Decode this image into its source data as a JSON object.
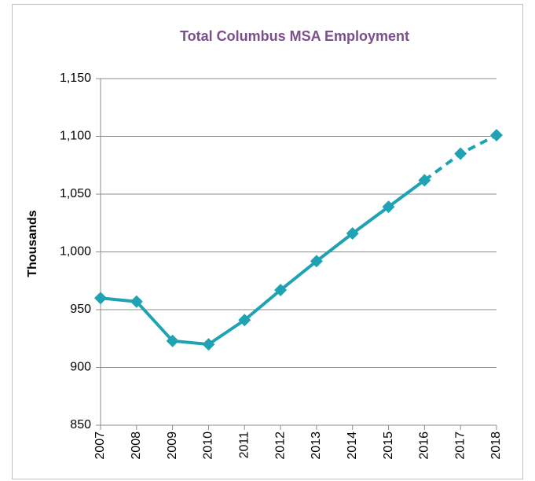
{
  "chart_data": {
    "type": "line",
    "title": "Total Columbus MSA Employment",
    "y_label": "Thousands",
    "categories": [
      "2007",
      "2008",
      "2009",
      "2010",
      "2011",
      "2012",
      "2013",
      "2014",
      "2015",
      "2016",
      "2017",
      "2018"
    ],
    "values": [
      960,
      957,
      923,
      920,
      941,
      967,
      992,
      1016,
      1039,
      1062,
      1085,
      1101
    ],
    "color": "#1fa3b3",
    "dashed_from_index": 9,
    "ylim": [
      850,
      1150
    ],
    "yticks": [
      {
        "value": 850,
        "label": "850"
      },
      {
        "value": 900,
        "label": "900"
      },
      {
        "value": 950,
        "label": "950"
      },
      {
        "value": 1000,
        "label": "1,000"
      },
      {
        "value": 1050,
        "label": "1,050"
      },
      {
        "value": 1100,
        "label": "1,100"
      },
      {
        "value": 1150,
        "label": "1,150"
      }
    ],
    "grid": true
  }
}
